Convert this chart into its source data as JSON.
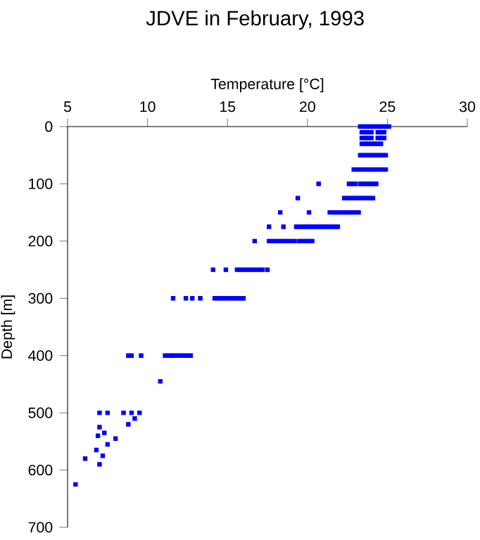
{
  "chart_data": {
    "type": "scatter",
    "title": "JDVE in February, 1993",
    "xlabel": "Temperature [°C]",
    "ylabel": "Depth [m]",
    "xlim": [
      5,
      30
    ],
    "xticks": [
      5,
      10,
      15,
      20,
      25,
      30
    ],
    "ylim": [
      700,
      0
    ],
    "yticks": [
      0,
      100,
      200,
      300,
      400,
      500,
      600,
      700
    ],
    "marker": "square",
    "series": [
      {
        "color": "#0000ff",
        "x": [
          23.3,
          23.5,
          23.7,
          23.9,
          24.1,
          24.3,
          24.5,
          24.7,
          24.9,
          25.1,
          23.4,
          23.6,
          23.8,
          24.0,
          24.4,
          24.6,
          24.8,
          23.4,
          23.6,
          23.8,
          24.0,
          24.4,
          24.6,
          24.8,
          23.4,
          23.6,
          23.8,
          24.0,
          24.2,
          24.4,
          24.6,
          23.3,
          23.5,
          23.7,
          23.9,
          24.1,
          24.3,
          24.5,
          24.7,
          24.9,
          22.9,
          23.1,
          23.3,
          23.5,
          23.7,
          23.9,
          24.1,
          24.3,
          24.5,
          24.7,
          24.9,
          20.7,
          22.6,
          22.8,
          23.0,
          23.3,
          23.5,
          23.7,
          23.9,
          24.1,
          24.3,
          19.4,
          22.3,
          22.5,
          22.7,
          22.9,
          23.1,
          23.3,
          23.5,
          23.7,
          23.9,
          24.1,
          18.3,
          20.1,
          21.4,
          21.6,
          21.8,
          22.0,
          22.2,
          22.4,
          22.6,
          22.8,
          23.0,
          23.2,
          17.6,
          18.5,
          19.3,
          19.5,
          19.7,
          19.9,
          20.1,
          20.3,
          20.5,
          20.7,
          20.9,
          21.1,
          21.3,
          21.5,
          21.7,
          21.9,
          16.7,
          17.6,
          17.8,
          18.0,
          18.2,
          18.4,
          18.6,
          18.8,
          19.0,
          19.2,
          19.5,
          19.7,
          19.9,
          20.1,
          20.3,
          14.1,
          14.9,
          15.6,
          15.8,
          16.0,
          16.2,
          16.4,
          16.6,
          16.8,
          17.0,
          17.2,
          17.5,
          11.6,
          12.4,
          12.8,
          13.3,
          14.2,
          14.4,
          14.6,
          14.8,
          15.0,
          15.2,
          15.4,
          15.6,
          15.8,
          16.0,
          8.8,
          9.0,
          9.6,
          11.1,
          11.3,
          11.5,
          11.7,
          11.9,
          12.1,
          12.3,
          12.5,
          12.7,
          10.8,
          7.0,
          7.5,
          8.5,
          9.0,
          9.5,
          9.2,
          8.8,
          7.0,
          7.3,
          6.9,
          8.0,
          7.5,
          6.8,
          7.2,
          6.1,
          7.0,
          5.5
        ],
        "values": [
          0,
          0,
          0,
          0,
          0,
          0,
          0,
          0,
          0,
          0,
          10,
          10,
          10,
          10,
          10,
          10,
          10,
          20,
          20,
          20,
          20,
          20,
          20,
          20,
          30,
          30,
          30,
          30,
          30,
          30,
          30,
          50,
          50,
          50,
          50,
          50,
          50,
          50,
          50,
          50,
          75,
          75,
          75,
          75,
          75,
          75,
          75,
          75,
          75,
          75,
          75,
          100,
          100,
          100,
          100,
          100,
          100,
          100,
          100,
          100,
          100,
          125,
          125,
          125,
          125,
          125,
          125,
          125,
          125,
          125,
          125,
          125,
          150,
          150,
          150,
          150,
          150,
          150,
          150,
          150,
          150,
          150,
          150,
          150,
          175,
          175,
          175,
          175,
          175,
          175,
          175,
          175,
          175,
          175,
          175,
          175,
          175,
          175,
          175,
          175,
          200,
          200,
          200,
          200,
          200,
          200,
          200,
          200,
          200,
          200,
          200,
          200,
          200,
          200,
          200,
          250,
          250,
          250,
          250,
          250,
          250,
          250,
          250,
          250,
          250,
          250,
          250,
          300,
          300,
          300,
          300,
          300,
          300,
          300,
          300,
          300,
          300,
          300,
          300,
          300,
          300,
          400,
          400,
          400,
          400,
          400,
          400,
          400,
          400,
          400,
          400,
          400,
          400,
          445,
          500,
          500,
          500,
          500,
          500,
          510,
          520,
          525,
          535,
          540,
          545,
          555,
          565,
          575,
          580,
          590,
          625
        ]
      }
    ]
  }
}
